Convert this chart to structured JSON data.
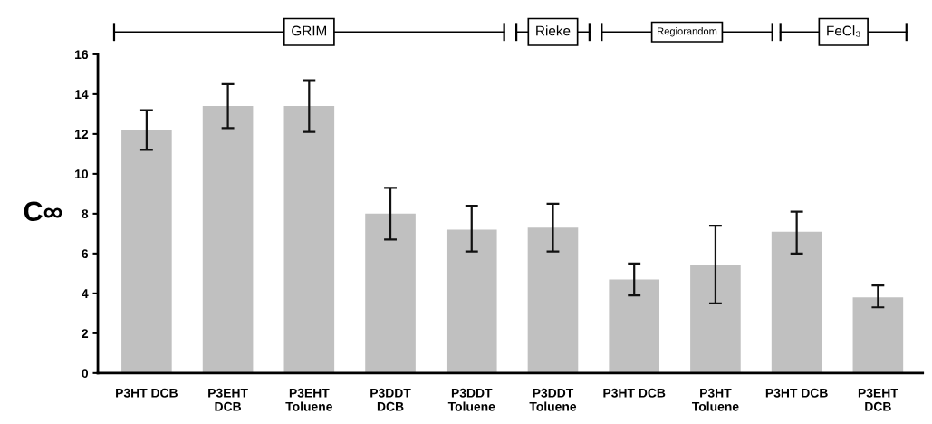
{
  "chart_data": {
    "type": "bar",
    "ylabel": "C∞",
    "categories": [
      "P3HT DCB",
      "P3EHT\nDCB",
      "P3EHT\nToluene",
      "P3DDT\nDCB",
      "P3DDT\nToluene",
      "P3DDT\nToluene",
      "P3HT DCB",
      "P3HT\nToluene",
      "P3HT DCB",
      "P3EHT\nDCB"
    ],
    "values": [
      12.2,
      13.4,
      13.4,
      8.0,
      7.2,
      7.3,
      4.7,
      5.4,
      7.1,
      3.8
    ],
    "errors": [
      [
        11.2,
        13.2
      ],
      [
        12.3,
        14.5
      ],
      [
        12.1,
        14.7
      ],
      [
        6.7,
        9.3
      ],
      [
        6.1,
        8.4
      ],
      [
        6.1,
        8.5
      ],
      [
        3.9,
        5.5
      ],
      [
        3.5,
        7.4
      ],
      [
        6.0,
        8.1
      ],
      [
        3.3,
        4.4
      ]
    ],
    "color": "#c0c0c0",
    "ylim": [
      0,
      16
    ],
    "yticks": [
      0,
      2,
      4,
      6,
      8,
      10,
      12,
      14,
      16
    ],
    "grid": false,
    "annotations": [
      "GRIM",
      "Rieke",
      "Regiorandom",
      "FeCl₃"
    ]
  }
}
